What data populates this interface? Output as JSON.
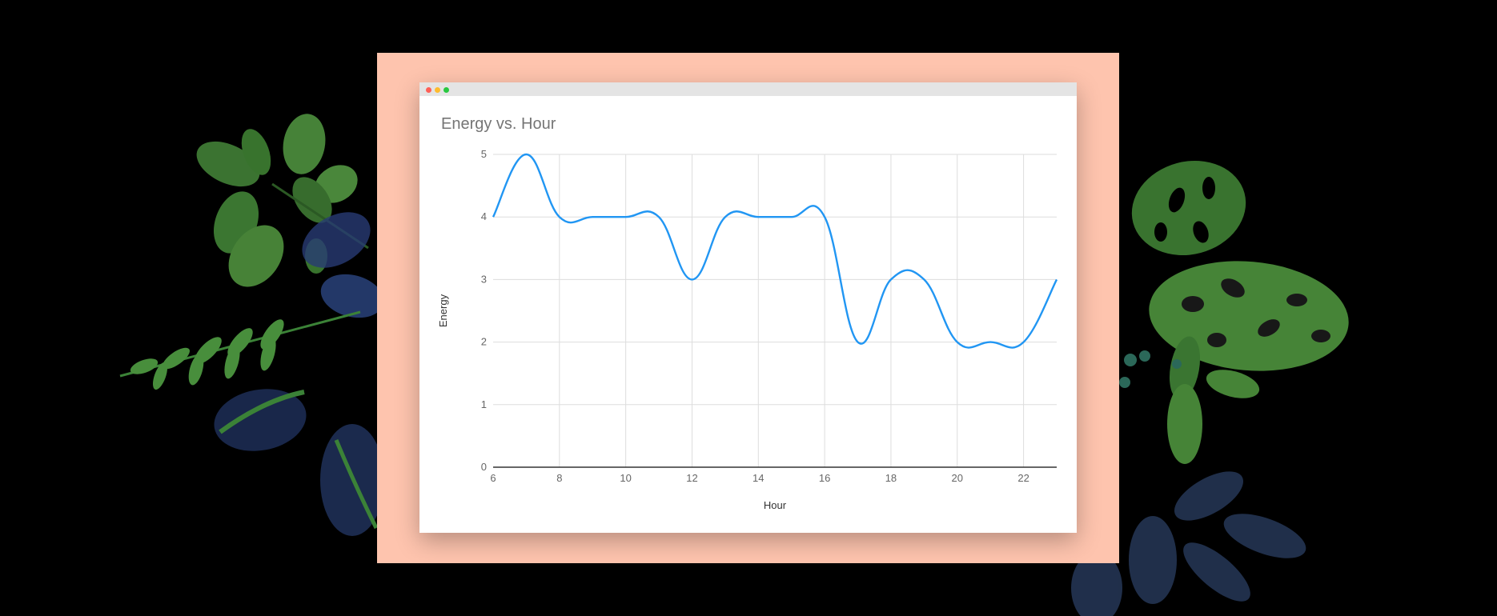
{
  "colors": {
    "frame": "#fec4ae",
    "line": "#2196f3",
    "grid": "#dddddd"
  },
  "window": {
    "controls": [
      {
        "name": "close-dot",
        "color": "#fe5f57"
      },
      {
        "name": "minimize-dot",
        "color": "#febc2e"
      },
      {
        "name": "zoom-dot",
        "color": "#28c840"
      }
    ]
  },
  "chart_data": {
    "type": "line",
    "title": "Energy vs. Hour",
    "xlabel": "Hour",
    "ylabel": "Energy",
    "xlim": [
      6,
      23
    ],
    "ylim": [
      0,
      5
    ],
    "xticks": [
      6,
      8,
      10,
      12,
      14,
      16,
      18,
      20,
      22
    ],
    "yticks": [
      0,
      1,
      2,
      3,
      4,
      5
    ],
    "grid": true,
    "smooth": true,
    "series": [
      {
        "color": "#2196f3",
        "x": [
          6,
          7,
          8,
          9,
          10,
          11,
          12,
          13,
          14,
          15,
          16,
          17,
          18,
          19,
          20,
          21,
          22,
          23
        ],
        "y": [
          4,
          5,
          4,
          4,
          4,
          4,
          3,
          4,
          4,
          4,
          4,
          2,
          3,
          3,
          2,
          2,
          2,
          3
        ]
      }
    ]
  }
}
